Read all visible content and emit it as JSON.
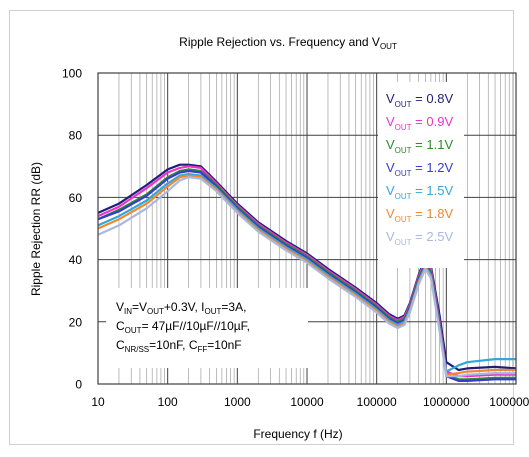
{
  "chart_data": {
    "type": "line",
    "title": "Ripple Rejection vs. Frequency and V",
    "title_sub": "OUT",
    "xlabel": "Frequency f (Hz)",
    "ylabel": "Ripple Rejection RR (dB)",
    "x_scale": "log",
    "xlim": [
      10,
      10000000
    ],
    "ylim": [
      0,
      100
    ],
    "x_ticks": [
      10,
      100,
      1000,
      10000,
      100000,
      1000000,
      10000000
    ],
    "x_tick_labels": [
      "10",
      "100",
      "1000",
      "10000",
      "100000",
      "1000000",
      "10000000"
    ],
    "y_ticks": [
      0,
      20,
      40,
      60,
      80,
      100
    ],
    "y_tick_labels": [
      "0",
      "20",
      "40",
      "60",
      "80",
      "100"
    ],
    "grid": true,
    "legend_position": "top-right",
    "legend_prefix": "V",
    "legend_sub": "OUT",
    "conditions": [
      [
        "V",
        "IN",
        "=V",
        "OUT",
        "+0.3V, I",
        "OUT",
        "=3A,"
      ],
      [
        "C",
        "OUT",
        "= 47µF//10µF//10µF,"
      ],
      [
        "C",
        "NR/SS",
        "=10nF, C",
        "FF",
        "=10nF"
      ]
    ],
    "x": [
      10,
      20,
      50,
      100,
      150,
      200,
      300,
      500,
      1000,
      2000,
      5000,
      10000,
      20000,
      50000,
      100000,
      150000,
      200000,
      250000,
      300000,
      400000,
      500000,
      600000,
      800000,
      1000000,
      1500000,
      2000000,
      5000000,
      10000000
    ],
    "series": [
      {
        "name": "= 0.8V",
        "color": "#1f1f7a",
        "values": [
          55,
          58,
          64,
          69,
          70.5,
          70.5,
          70,
          65,
          58,
          52,
          46,
          42,
          37,
          31,
          26,
          22.5,
          21,
          22,
          26,
          35,
          41,
          38,
          22,
          7,
          4.5,
          5,
          5.5,
          5
        ]
      },
      {
        "name": "= 0.9V",
        "color": "#ee33cc",
        "values": [
          54,
          57,
          63,
          68,
          69.5,
          70,
          69.5,
          64.5,
          57.5,
          51.5,
          45.5,
          41.5,
          36.5,
          30.5,
          25.5,
          22,
          20.5,
          21.5,
          25.5,
          34.5,
          40,
          37,
          20,
          4,
          2.5,
          2.5,
          3,
          3
        ]
      },
      {
        "name": "= 1.1V",
        "color": "#2e8b2e",
        "values": [
          53,
          56,
          61,
          66.5,
          68.5,
          69,
          68.5,
          64,
          57,
          51,
          45,
          41,
          36,
          30,
          25,
          21.5,
          20,
          21,
          25,
          34,
          39,
          36,
          19,
          3,
          1.5,
          1.5,
          2,
          2
        ]
      },
      {
        "name": "= 1.2V",
        "color": "#3a3ad0",
        "values": [
          53,
          55.5,
          60.5,
          66,
          68,
          68.5,
          68,
          63.5,
          56.5,
          50.5,
          44.5,
          40.5,
          35.5,
          29.5,
          24.5,
          21,
          19.5,
          20.5,
          24.5,
          33.5,
          38.5,
          35.5,
          18.5,
          2.5,
          1,
          1,
          1.5,
          1.5
        ]
      },
      {
        "name": "= 1.5V",
        "color": "#30a8d8",
        "values": [
          51,
          54,
          59,
          64.5,
          67,
          67.5,
          67,
          63,
          56,
          50,
          44,
          40,
          35,
          29,
          24,
          20.5,
          19,
          20,
          24,
          33,
          38,
          35,
          18,
          4,
          6,
          7,
          8,
          8
        ]
      },
      {
        "name": "= 1.8V",
        "color": "#ee8833",
        "values": [
          50,
          53,
          58,
          63.5,
          66.5,
          67,
          66.5,
          62.5,
          55.5,
          49.5,
          43.5,
          39.5,
          34.5,
          28.5,
          23.5,
          20,
          18.5,
          19.5,
          23.5,
          32.5,
          37.5,
          34.5,
          17.5,
          3,
          3.5,
          4,
          4.5,
          4.5
        ]
      },
      {
        "name": "= 2.5V",
        "color": "#a8b8e0",
        "values": [
          48,
          51,
          56.5,
          62,
          65.5,
          66.5,
          66,
          62,
          55,
          49,
          43,
          39,
          34,
          28,
          23,
          19.5,
          18,
          19,
          23,
          32,
          37,
          34,
          17,
          2.5,
          2.5,
          3,
          3.5,
          3.5
        ]
      }
    ]
  }
}
